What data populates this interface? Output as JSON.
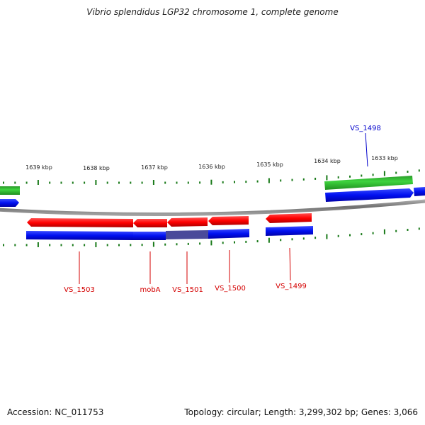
{
  "title": "Vibrio splendidus LGP32 chromosome 1, complete genome",
  "accession": "Accession: NC_011753",
  "summary": "Topology: circular; Length: 3,299,302 bp; Genes: 3,066",
  "scale": {
    "labels": [
      "1639 kbp",
      "1638 kbp",
      "1637 kbp",
      "1636 kbp",
      "1635 kbp",
      "1634 kbp",
      "1633 kbp"
    ]
  },
  "genes": [
    {
      "name": "VS_1503",
      "color": "#d40000"
    },
    {
      "name": "mobA",
      "color": "#d40000"
    },
    {
      "name": "VS_1501",
      "color": "#d40000"
    },
    {
      "name": "VS_1500",
      "color": "#d40000"
    },
    {
      "name": "VS_1499",
      "color": "#d40000"
    },
    {
      "name": "VS_1498",
      "color": "#0000cc"
    }
  ],
  "colors": {
    "reverse_gene": "#ff1a1a",
    "cds": "#0a14e6",
    "forward_gene": "#33cc33",
    "backbone": "#808080",
    "tick": "#1a7a1a"
  }
}
